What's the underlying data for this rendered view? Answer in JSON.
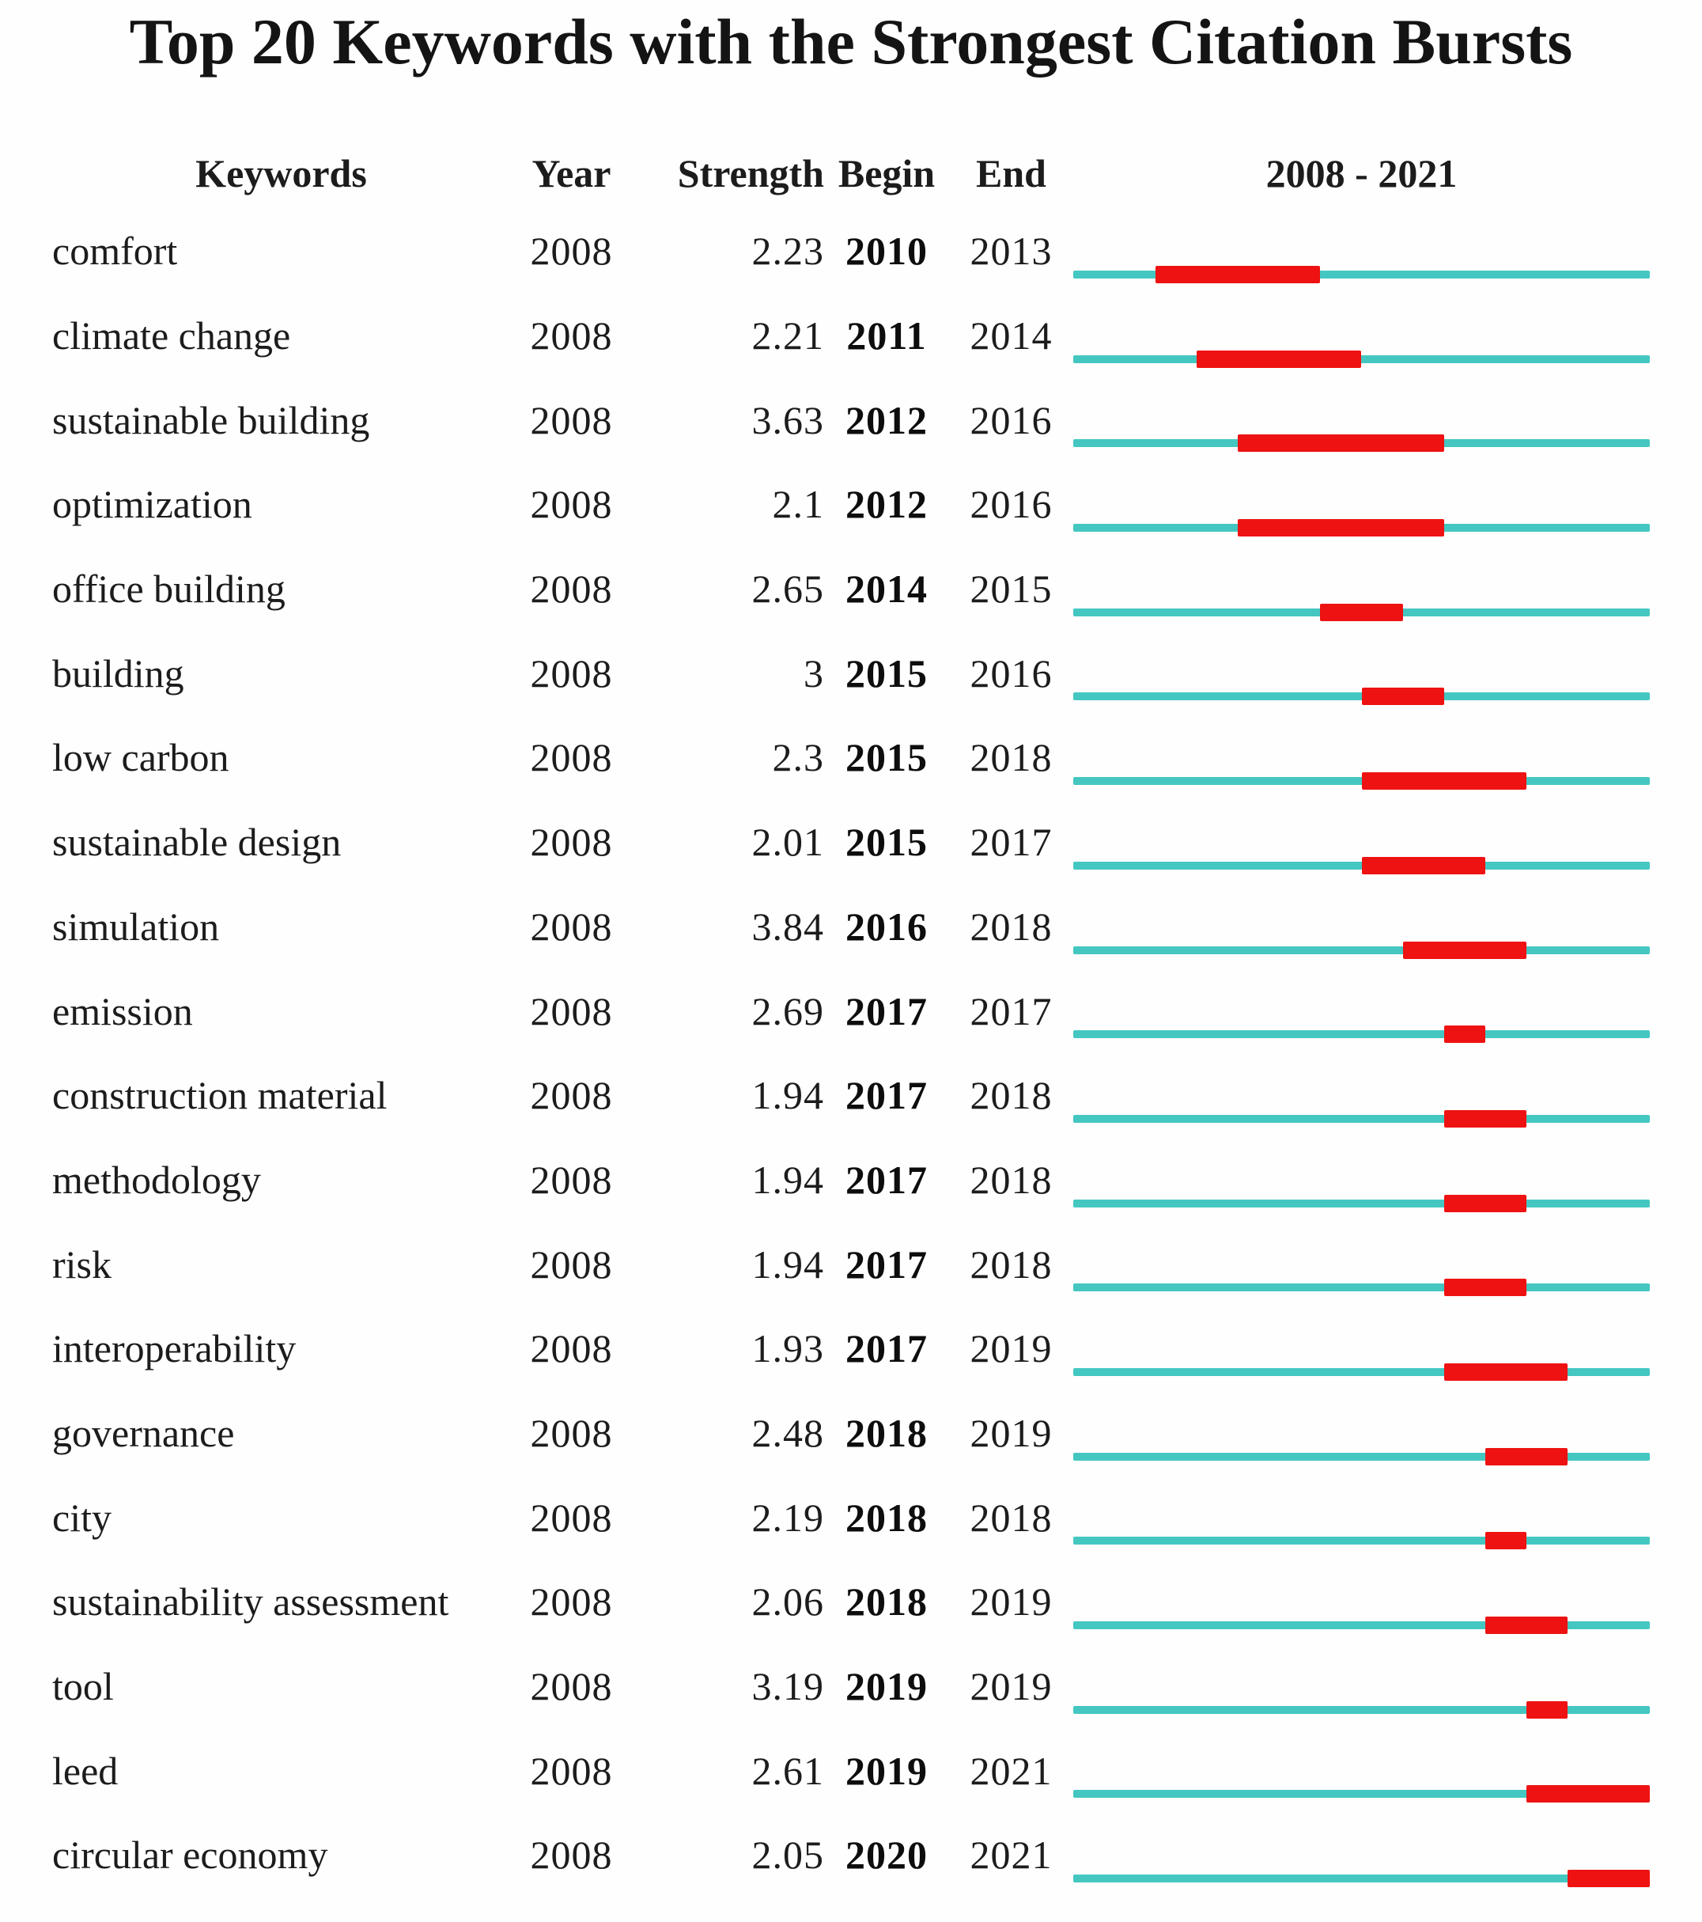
{
  "title": "Top 20 Keywords with the Strongest Citation Bursts",
  "header": {
    "keywords": "Keywords",
    "year": "Year",
    "strength": "Strength",
    "begin": "Begin",
    "end": "End",
    "timeline": "2008 - 2021"
  },
  "colors": {
    "track_teal": "#45c7c1",
    "burst_red": "#ee1212",
    "text": "#1c1c1c"
  },
  "chart_data": {
    "type": "table",
    "title": "Top 20 Keywords with the Strongest Citation Bursts",
    "columns": [
      "Keywords",
      "Year",
      "Strength",
      "Begin",
      "End",
      "2008 - 2021"
    ],
    "timeline_range": [
      2008,
      2021
    ],
    "timeline_years_total": 14,
    "bar_style": "teal full-range line with red burst segment from Begin year to End year inclusive",
    "rows": [
      {
        "keyword": "comfort",
        "year": "2008",
        "strength": "2.23",
        "begin": "2010",
        "end": "2013"
      },
      {
        "keyword": "climate change",
        "year": "2008",
        "strength": "2.21",
        "begin": "2011",
        "end": "2014"
      },
      {
        "keyword": "sustainable building",
        "year": "2008",
        "strength": "3.63",
        "begin": "2012",
        "end": "2016"
      },
      {
        "keyword": "optimization",
        "year": "2008",
        "strength": "2.1",
        "begin": "2012",
        "end": "2016"
      },
      {
        "keyword": "office building",
        "year": "2008",
        "strength": "2.65",
        "begin": "2014",
        "end": "2015"
      },
      {
        "keyword": "building",
        "year": "2008",
        "strength": "3",
        "begin": "2015",
        "end": "2016"
      },
      {
        "keyword": "low carbon",
        "year": "2008",
        "strength": "2.3",
        "begin": "2015",
        "end": "2018"
      },
      {
        "keyword": "sustainable design",
        "year": "2008",
        "strength": "2.01",
        "begin": "2015",
        "end": "2017"
      },
      {
        "keyword": "simulation",
        "year": "2008",
        "strength": "3.84",
        "begin": "2016",
        "end": "2018"
      },
      {
        "keyword": "emission",
        "year": "2008",
        "strength": "2.69",
        "begin": "2017",
        "end": "2017"
      },
      {
        "keyword": "construction material",
        "year": "2008",
        "strength": "1.94",
        "begin": "2017",
        "end": "2018"
      },
      {
        "keyword": "methodology",
        "year": "2008",
        "strength": "1.94",
        "begin": "2017",
        "end": "2018"
      },
      {
        "keyword": "risk",
        "year": "2008",
        "strength": "1.94",
        "begin": "2017",
        "end": "2018"
      },
      {
        "keyword": "interoperability",
        "year": "2008",
        "strength": "1.93",
        "begin": "2017",
        "end": "2019"
      },
      {
        "keyword": "governance",
        "year": "2008",
        "strength": "2.48",
        "begin": "2018",
        "end": "2019"
      },
      {
        "keyword": "city",
        "year": "2008",
        "strength": "2.19",
        "begin": "2018",
        "end": "2018"
      },
      {
        "keyword": "sustainability assessment",
        "year": "2008",
        "strength": "2.06",
        "begin": "2018",
        "end": "2019"
      },
      {
        "keyword": "tool",
        "year": "2008",
        "strength": "3.19",
        "begin": "2019",
        "end": "2019"
      },
      {
        "keyword": "leed",
        "year": "2008",
        "strength": "2.61",
        "begin": "2019",
        "end": "2021"
      },
      {
        "keyword": "circular economy",
        "year": "2008",
        "strength": "2.05",
        "begin": "2020",
        "end": "2021"
      }
    ]
  }
}
